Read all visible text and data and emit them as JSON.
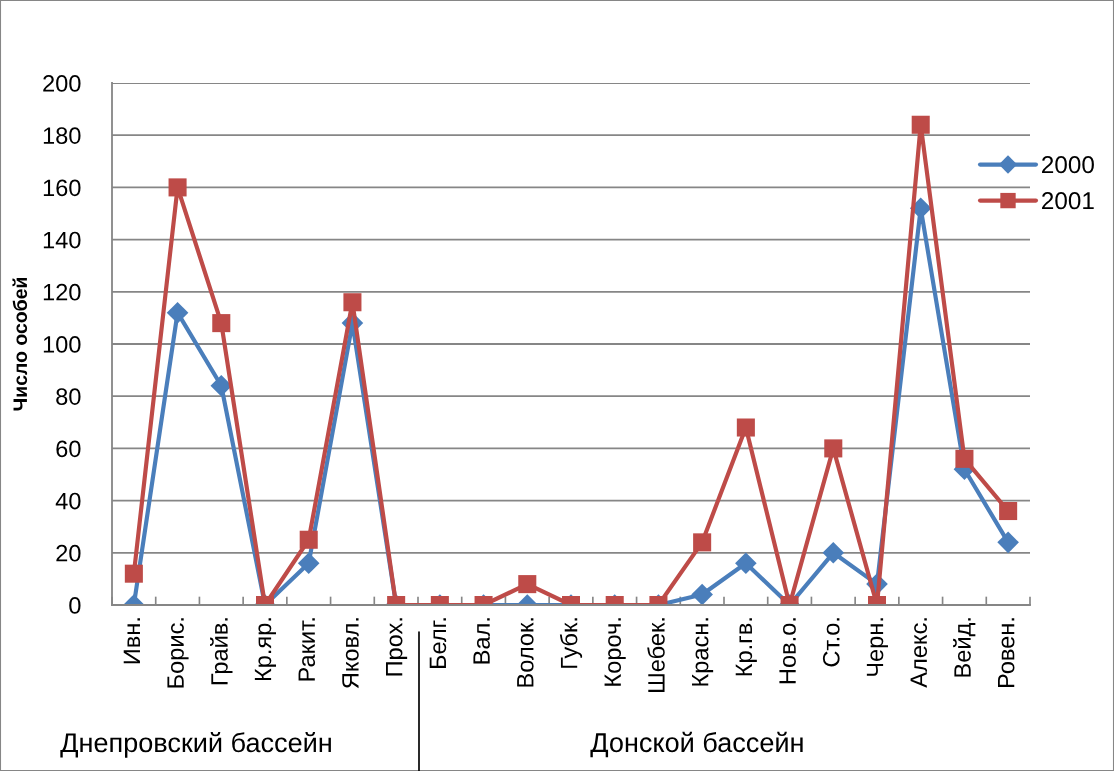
{
  "chart_data": {
    "type": "line",
    "categories": [
      "Ивн.",
      "Борис.",
      "Грайв.",
      "Кр.яр.",
      "Ракит.",
      "Яковл.",
      "Прох.",
      "Белг.",
      "Вал.",
      "Волок.",
      "Губк.",
      "Короч.",
      "Шебек.",
      "Красн.",
      "Кр.гв.",
      "Нов.о.",
      "Ст.о.",
      "Черн.",
      "Алекс.",
      "Вейд.",
      "Ровен."
    ],
    "series": [
      {
        "name": "2000",
        "color": "#4a7ebb",
        "marker": "diamond",
        "values": [
          0,
          112,
          84,
          0,
          16,
          108,
          0,
          0,
          0,
          0,
          0,
          0,
          0,
          4,
          16,
          0,
          20,
          8,
          152,
          52,
          24
        ]
      },
      {
        "name": "2001",
        "color": "#be4b48",
        "marker": "square",
        "values": [
          12,
          160,
          108,
          0,
          25,
          116,
          0,
          0,
          0,
          8,
          0,
          0,
          0,
          24,
          68,
          0,
          60,
          0,
          184,
          56,
          36
        ]
      }
    ],
    "ylabel": "Число особей",
    "ylim": [
      0,
      200
    ],
    "yticks": [
      0,
      20,
      40,
      60,
      80,
      100,
      120,
      140,
      160,
      180,
      200
    ],
    "grid": "y",
    "legend": "right",
    "line_style": "solid",
    "annotations": [
      "Днепровский бассейн",
      "Донской бассейн"
    ]
  }
}
